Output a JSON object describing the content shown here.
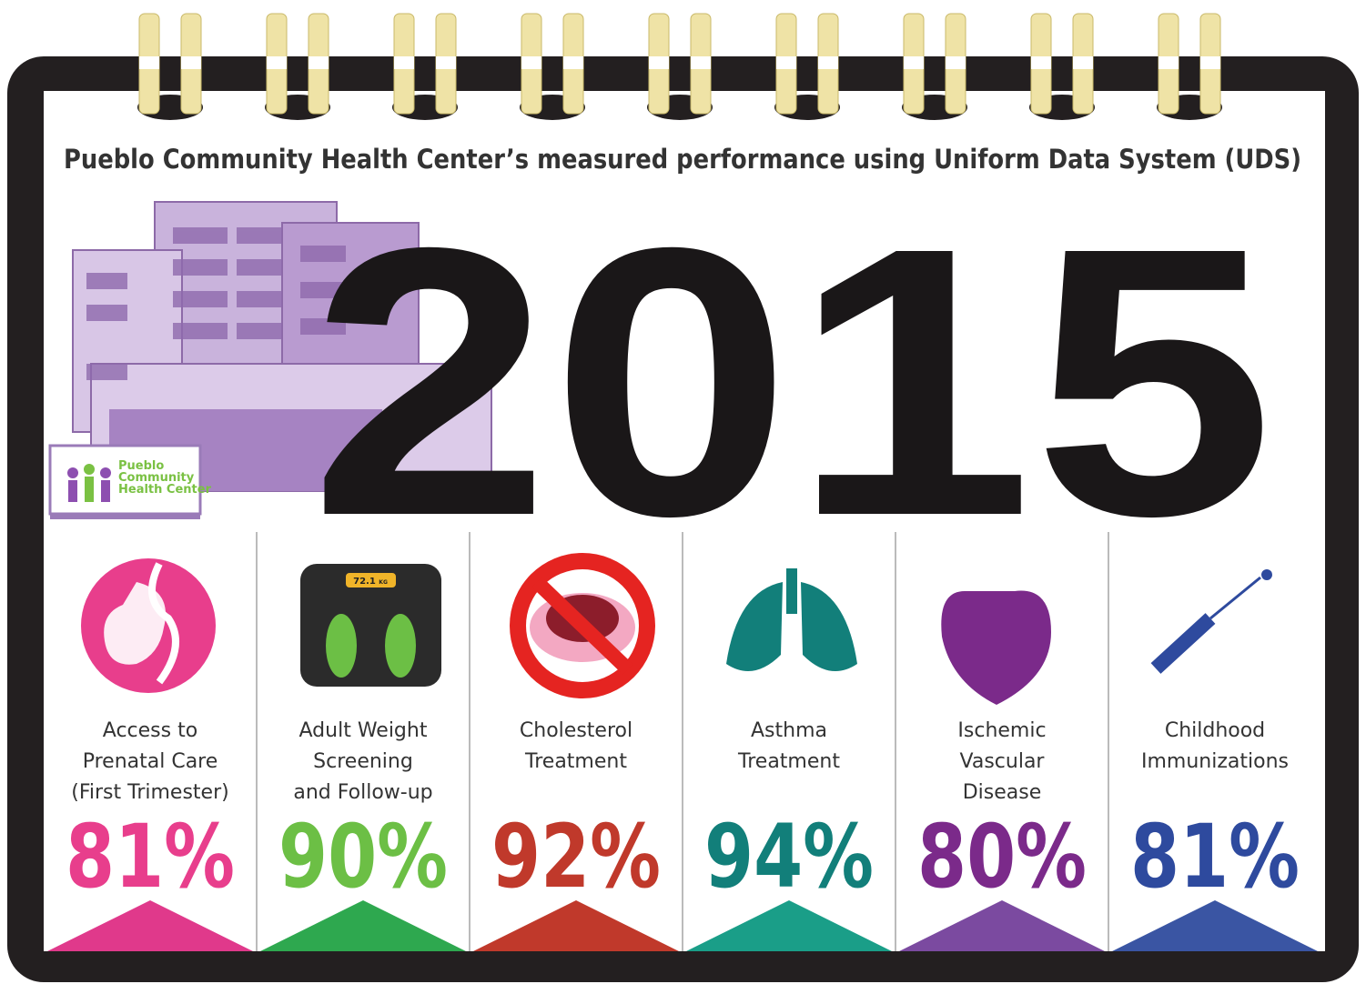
{
  "header": {
    "title": "Pueblo Community Health Center’s measured performance using Uniform Data System (UDS)",
    "year": "2015"
  },
  "logo": {
    "lines": [
      "Pueblo",
      "Community",
      "Health Center"
    ]
  },
  "scale": {
    "reading": "72.1",
    "unit": "KG"
  },
  "measures": [
    {
      "label": [
        "Access to",
        "Prenatal Care",
        "(First Trimester)"
      ],
      "value": "81%",
      "color": "#e83e8c",
      "accent": "#e0398b"
    },
    {
      "label": [
        "Adult Weight",
        "Screening",
        "and Follow-up"
      ],
      "value": "90%",
      "color": "#6cbf45",
      "accent": "#2ea84f"
    },
    {
      "label": [
        "Cholesterol",
        "Treatment"
      ],
      "value": "92%",
      "color": "#c0392b",
      "accent": "#c0392b"
    },
    {
      "label": [
        "Asthma",
        "Treatment"
      ],
      "value": "94%",
      "color": "#127f7a",
      "accent": "#1a9e88"
    },
    {
      "label": [
        "Ischemic",
        "Vascular",
        "Disease"
      ],
      "value": "80%",
      "color": "#7b2a8a",
      "accent": "#7b4aa0"
    },
    {
      "label": [
        "Childhood",
        "Immunizations"
      ],
      "value": "81%",
      "color": "#2e4a9e",
      "accent": "#3a55a3"
    }
  ]
}
